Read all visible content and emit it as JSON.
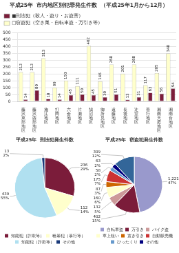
{
  "chart_data": [
    {
      "type": "bar",
      "title": "平成25年  市内地区別犯罪発生件数  （平成25年1月から12月）",
      "categories": [
        "藤\n沢\n東\n部\n地\n区",
        "藤\n沢\n西\n部\n地\n区",
        "施\n江\n地\n区",
        "打\n岡\n地\n区",
        "六\n会\n地\n区",
        "片\n瀬\n地\n区",
        "鵠\n沼\n地\n区",
        "御\n所\n見\n地\n区",
        "遠\n藤\n地\n区",
        "長\n後\n地\n区",
        "辻\n堂\n地\n区",
        "善\n行\n地\n区",
        "湘\n南\n大\n庭\n地\n区",
        "湘\n南\n台\n地\n区"
      ],
      "series": [
        {
          "name": "□窃盗犯（空き巣・自転車盗・万引き等）",
          "color": "#ffffcc",
          "values": [
            212,
            212,
            313,
            99,
            150,
            111,
            402,
            146,
            268,
            201,
            268,
            117,
            205,
            348
          ]
        },
        {
          "name": "■刑法犯（殺人・盗り・お盗害）",
          "color": "#7b1c3a",
          "values": [
            14,
            80,
            18,
            14,
            45,
            50,
            45,
            30,
            51,
            13,
            31,
            63,
            56,
            94
          ]
        }
      ],
      "ylim": [
        0,
        500
      ],
      "yticks": [
        0,
        50,
        100,
        150,
        200,
        250,
        300,
        350,
        400,
        450,
        500
      ],
      "grid": true,
      "data_labels": true,
      "legend": "upper left"
    },
    {
      "type": "pie",
      "title": "平成25年  刑法犯発生件数",
      "categories": [
        "知能犯（詐欺等）",
        "粗暴犯（暴行等）",
        "知能犯（詐欺等）",
        "その他"
      ],
      "values": [
        236,
        112,
        439,
        13
      ],
      "value_labels": [
        "236\n29%",
        "112\n14%",
        "439\n55%",
        "13\n2%"
      ],
      "colors": [
        "#7b1c3a",
        "#ffffcc",
        "#b0e0f0",
        "#1a3a7a"
      ],
      "data_labels": true,
      "legend": "bottom"
    },
    {
      "type": "pie",
      "title": "平成25年  窃盗犯発生件数",
      "categories": [
        "自転車盗",
        "万引き",
        "バイク盗",
        "車上狙い",
        "置き引き",
        "自動販売機",
        "ひったくり",
        "その他",
        null
      ],
      "values": [
        1221,
        402,
        132,
        160,
        87,
        175,
        58,
        63,
        309
      ],
      "value_labels": [
        "1,221\n47%",
        "402\n15%",
        "132\n5%",
        "160\n6%",
        "87\n3%",
        "175\n7%",
        "58\n2%",
        "63\n2%",
        "309\n12%"
      ],
      "colors": [
        "#9999cc",
        "#7b1c3a",
        "#cc9999",
        "#ffffcc",
        "#cc6600",
        "#cc3333",
        "#6699cc",
        "#000080",
        "#336699"
      ],
      "data_labels": true,
      "legend": "bottom"
    }
  ]
}
